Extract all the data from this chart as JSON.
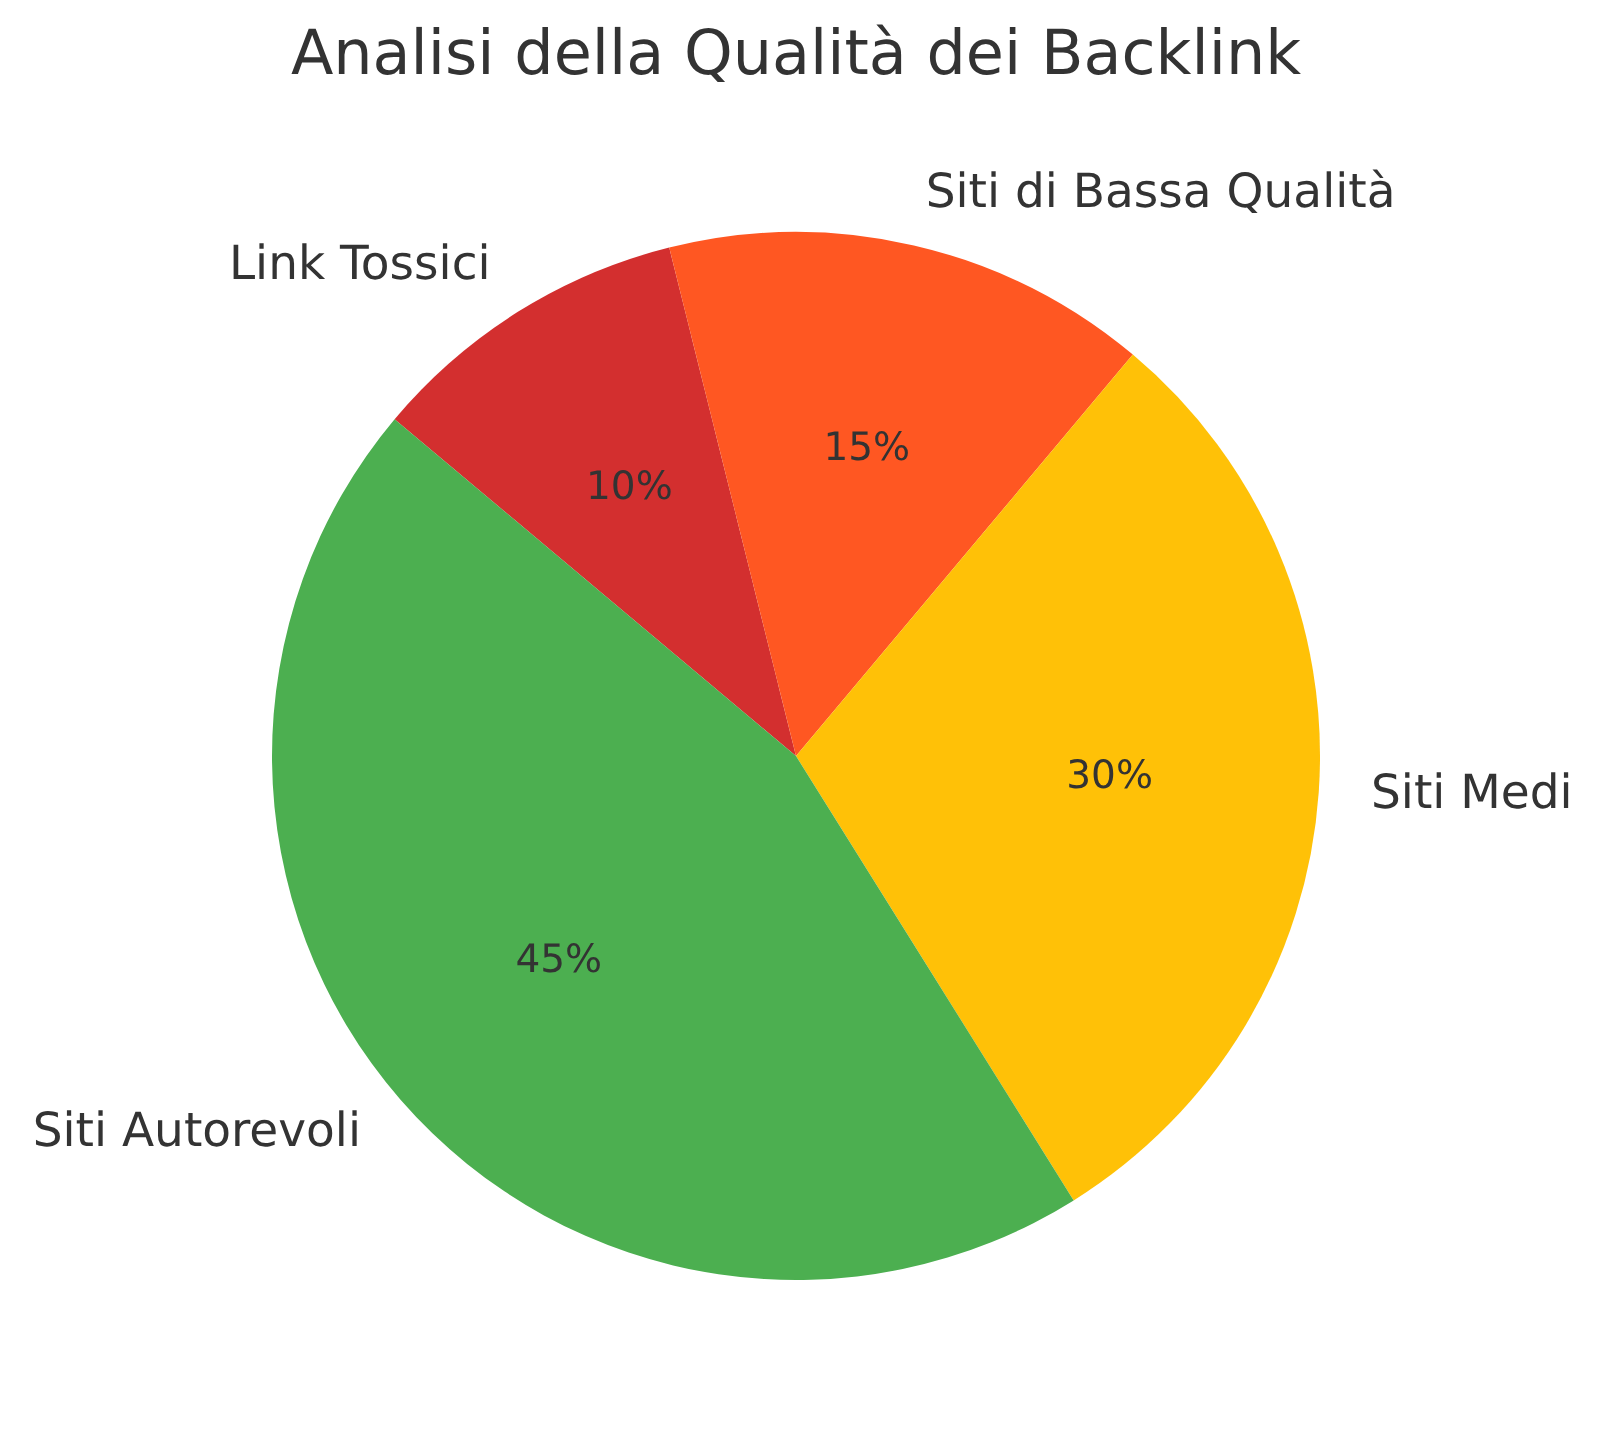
{
  "chart_data": {
    "type": "pie",
    "title": "Analisi della Qualità dei Backlink",
    "categories": [
      "Link Tossici",
      "Siti di Bassa Qualità",
      "Siti Medi",
      "Siti Autorevoli"
    ],
    "values": [
      10,
      15,
      30,
      45
    ],
    "colors": [
      "#d32f2f",
      "#ff5722",
      "#ffc107",
      "#4caf50"
    ],
    "value_labels": [
      "10%",
      "15%",
      "30%",
      "45%"
    ]
  }
}
